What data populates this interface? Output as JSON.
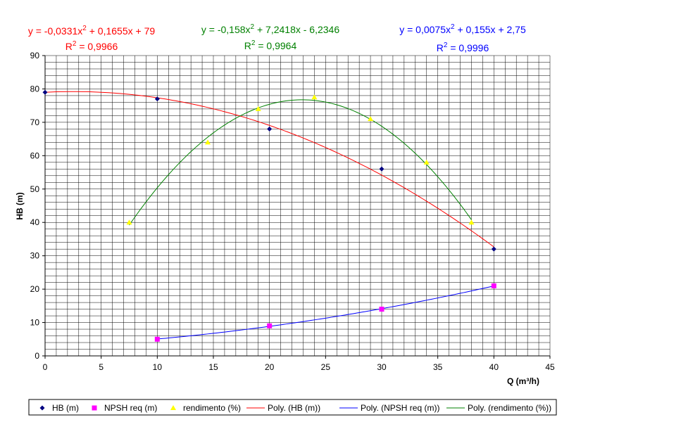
{
  "chart_data": {
    "type": "scatter",
    "xlabel": "Q (m³/h)",
    "ylabel": "HB (m)",
    "xlim": [
      0,
      45
    ],
    "ylim": [
      0,
      90
    ],
    "xticks": [
      0,
      5,
      10,
      15,
      20,
      25,
      30,
      35,
      40,
      45
    ],
    "yticks": [
      0,
      10,
      20,
      30,
      40,
      50,
      60,
      70,
      80,
      90
    ],
    "grid": true,
    "legend_position": "bottom",
    "series": [
      {
        "name": "HB (m)",
        "marker": "diamond",
        "color": "#000080",
        "points": [
          [
            0,
            79
          ],
          [
            10,
            77
          ],
          [
            20,
            68
          ],
          [
            30,
            56
          ],
          [
            40,
            32
          ]
        ]
      },
      {
        "name": "NPSH req (m)",
        "marker": "square",
        "color": "#ff00ff",
        "points": [
          [
            10,
            5
          ],
          [
            20,
            9
          ],
          [
            30,
            14
          ],
          [
            40,
            21
          ]
        ]
      },
      {
        "name": "rendimento (%)",
        "marker": "triangle",
        "color": "#ffff00",
        "points": [
          [
            7.5,
            40
          ],
          [
            14.5,
            64
          ],
          [
            19,
            74
          ],
          [
            24,
            77.5
          ],
          [
            29,
            71
          ],
          [
            34,
            58
          ],
          [
            38,
            40
          ]
        ]
      }
    ],
    "trendlines": [
      {
        "name": "Poly. (HB (m))",
        "color": "#ff0000",
        "coeffs": [
          -0.0331,
          0.1655,
          79
        ],
        "x_range": [
          0,
          40
        ]
      },
      {
        "name": "Poly. (NPSH req (m))",
        "color": "#0000ff",
        "coeffs": [
          0.0075,
          0.155,
          2.75
        ],
        "x_range": [
          10,
          40
        ]
      },
      {
        "name": "Poly. (rendimento (%))",
        "color": "#008000",
        "coeffs": [
          -0.158,
          7.2418,
          -6.2346
        ],
        "x_range": [
          7.5,
          38
        ]
      }
    ],
    "equations": [
      {
        "eq_main": "y = -0,0331x",
        "eq_exp": "2",
        "eq_tail": " + 0,1655x + 79",
        "r2_main": "R",
        "r2_exp": "2",
        "r2_tail": " = 0,9966",
        "color": "#ff0000"
      },
      {
        "eq_main": "y = -0,158x",
        "eq_exp": "2",
        "eq_tail": " + 7,2418x - 6,2346",
        "r2_main": "R",
        "r2_exp": "2",
        "r2_tail": " = 0,9964",
        "color": "#008000"
      },
      {
        "eq_main": "y = 0,0075x",
        "eq_exp": "2",
        "eq_tail": " + 0,155x + 2,75",
        "r2_main": "R",
        "r2_exp": "2",
        "r2_tail": " = 0,9996",
        "color": "#0000ff"
      }
    ],
    "legend": [
      {
        "label": "HB (m)",
        "kind": "diamond",
        "color": "#000080"
      },
      {
        "label": "NPSH req (m)",
        "kind": "square",
        "color": "#ff00ff"
      },
      {
        "label": "rendimento (%)",
        "kind": "triangle",
        "color": "#ffff00"
      },
      {
        "label": "Poly. (HB (m))",
        "kind": "line",
        "color": "#ff0000"
      },
      {
        "label": "Poly. (NPSH req (m))",
        "kind": "line",
        "color": "#0000ff"
      },
      {
        "label": "Poly. (rendimento (%))",
        "kind": "line",
        "color": "#008000"
      }
    ]
  }
}
